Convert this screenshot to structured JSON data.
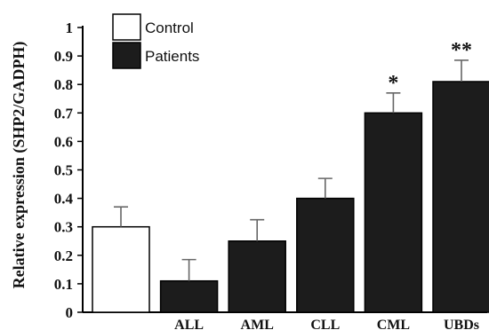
{
  "chart_data": {
    "type": "bar",
    "ylabel": "Relative expression (SHP2/GADPH)",
    "xlabel": "",
    "ylim": [
      0,
      1
    ],
    "yticks": [
      "0",
      "0.1",
      "0.2",
      "0.3",
      "0.4",
      "0.5",
      "0.6",
      "0.7",
      "0.8",
      "0.9",
      "1"
    ],
    "grid": false,
    "legend_position": "top-left",
    "legend": [
      {
        "label": "Control",
        "fill": "#ffffff"
      },
      {
        "label": "Patients",
        "fill": "#1c1c1c"
      }
    ],
    "bars": [
      {
        "category": "",
        "group": "Control",
        "value": 0.3,
        "error": 0.07,
        "significance": ""
      },
      {
        "category": "ALL",
        "group": "Patients",
        "value": 0.11,
        "error": 0.075,
        "significance": ""
      },
      {
        "category": "AML",
        "group": "Patients",
        "value": 0.25,
        "error": 0.075,
        "significance": ""
      },
      {
        "category": "CLL",
        "group": "Patients",
        "value": 0.4,
        "error": 0.07,
        "significance": ""
      },
      {
        "category": "CML",
        "group": "Patients",
        "value": 0.7,
        "error": 0.07,
        "significance": "*"
      },
      {
        "category": "UBDs",
        "group": "Patients",
        "value": 0.81,
        "error": 0.075,
        "significance": "**"
      }
    ]
  }
}
